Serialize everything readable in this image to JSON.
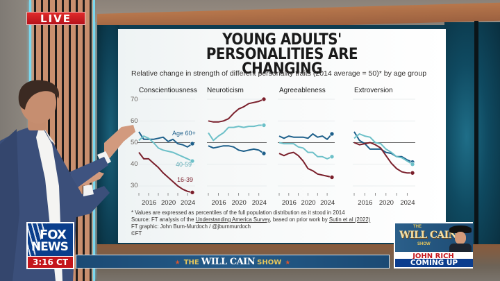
{
  "overlay": {
    "live_label": "LIVE",
    "network_logo_line1": "FOX",
    "network_logo_line2": "NEWS",
    "clock": "3:16 CT",
    "show_banner": {
      "prefix": "THE",
      "name": "WILL CAIN",
      "suffix": "SHOW"
    },
    "up_next": {
      "logo_top": "THE",
      "logo_name": "WILL CAIN",
      "logo_bottom": "SHOW",
      "guest": "JOHN RICH",
      "label": "COMING UP"
    },
    "colors": {
      "live_red": "#c4161c",
      "fox_blue": "#0a3e8c",
      "banner_blue": "#1b4a74",
      "banner_gold": "#e8c75a"
    }
  },
  "chart_data": {
    "type": "line",
    "title": "YOUNG ADULTS' PERSONALITIES ARE CHANGING",
    "subtitle": "Relative change in strength of different personality traits (2014 average = 50)* by age group",
    "ylim": [
      25,
      72
    ],
    "yticks": [
      "70",
      "60",
      "50",
      "40",
      "30"
    ],
    "xticks": [
      "2016",
      "2020",
      "2024"
    ],
    "x": [
      2014,
      2015,
      2016,
      2017,
      2018,
      2019,
      2020,
      2021,
      2022,
      2023,
      2024,
      2025
    ],
    "baseline": 50,
    "series_colors": {
      "Age 60+": "#1d5f8a",
      "40-59": "#6cc0c8",
      "16-39": "#7a1f2b"
    },
    "facets": [
      {
        "title": "Conscientiousness",
        "series_labels": [
          "Age 60+",
          "40-59",
          "16-39"
        ],
        "series": [
          {
            "name": "Age 60+",
            "values": [
              55,
              51.5,
              51.5,
              51.5,
              52,
              52.5,
              50.5,
              51.5,
              49.5,
              49,
              48,
              49.5
            ]
          },
          {
            "name": "40-59",
            "values": [
              51,
              53,
              52,
              50,
              47.5,
              46.5,
              46,
              45.5,
              44.5,
              43.5,
              42.5,
              41.5
            ]
          },
          {
            "name": "16-39",
            "values": [
              45.5,
              42.5,
              42.5,
              40.5,
              38.5,
              36,
              34,
              32,
              30,
              28.5,
              27.5,
              27
            ]
          }
        ]
      },
      {
        "title": "Neuroticism",
        "series": [
          {
            "name": "16-39",
            "values": [
              60,
              59.5,
              59.5,
              60,
              61,
              63.5,
              65.5,
              66.5,
              68,
              68.5,
              69,
              70
            ]
          },
          {
            "name": "40-59",
            "values": [
              54.5,
              51,
              53,
              54.5,
              57,
              57,
              57.5,
              57,
              57.5,
              57.5,
              58,
              58
            ]
          },
          {
            "name": "Age 60+",
            "values": [
              48.5,
              47.5,
              48,
              48.5,
              48.5,
              48,
              46.5,
              46,
              46.5,
              47,
              46.5,
              45
            ]
          }
        ]
      },
      {
        "title": "Agreeableness",
        "series": [
          {
            "name": "Age 60+",
            "values": [
              53,
              52,
              53,
              52.5,
              52.5,
              52.5,
              52,
              54,
              52.5,
              53,
              51.5,
              54
            ]
          },
          {
            "name": "40-59",
            "values": [
              50,
              49.5,
              49.5,
              49.5,
              48,
              47.5,
              45.5,
              45.5,
              43.5,
              43.5,
              42.5,
              43.5
            ]
          },
          {
            "name": "16-39",
            "values": [
              45,
              44,
              45,
              45.5,
              44,
              41.5,
              38,
              37,
              35.5,
              35,
              34.5,
              34
            ]
          }
        ]
      },
      {
        "title": "Extroversion",
        "series": [
          {
            "name": "Age 60+",
            "values": [
              55,
              51,
              49.5,
              47,
              47,
              47,
              45.5,
              45,
              43.5,
              43.5,
              42,
              41
            ]
          },
          {
            "name": "40-59",
            "values": [
              52,
              54,
              53,
              52.5,
              50,
              49.5,
              47,
              45.5,
              43.5,
              43,
              41.5,
              40
            ]
          },
          {
            "name": "16-39",
            "values": [
              50,
              49,
              49.5,
              50,
              49,
              47.5,
              44,
              40.5,
              38,
              36.5,
              36,
              36
            ]
          }
        ]
      }
    ],
    "footnotes": [
      "* Values are expressed as percentiles of the full population distribution as it stood in 2014",
      "Source: FT analysis of the ",
      "Understanding America Survey",
      ", based on prior work by ",
      "Sutin et al (2022)",
      "FT graphic: John Burn-Murdoch / @jburnmurdoch",
      "©FT"
    ]
  }
}
